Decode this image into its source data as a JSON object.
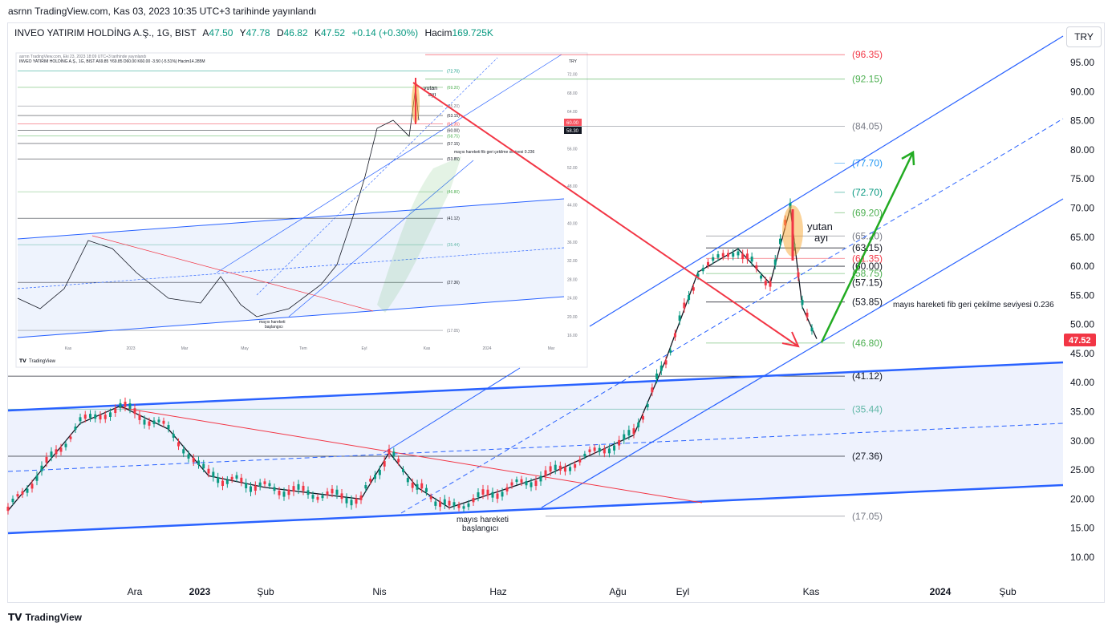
{
  "header": {
    "published_line": "asrnn TradingView.com, Kas 03, 2023 10:35 UTC+3 tarihinde yayınlandı",
    "symbol": "INVEO YATIRIM HOLDİNG A.Ş., 1G, BIST",
    "open_label": "A",
    "open": "47.50",
    "high_label": "Y",
    "high": "47.78",
    "low_label": "D",
    "low": "46.82",
    "close_label": "K",
    "close": "47.52",
    "change": "+0.14 (+0.30%)",
    "volume_label": "Hacim",
    "volume": "169.725K"
  },
  "currency_button": "TRY",
  "footer_logo": "TradingView",
  "chart_data": {
    "type": "candlestick",
    "price_axis": [
      "95.00",
      "90.00",
      "85.00",
      "80.00",
      "75.00",
      "70.00",
      "65.00",
      "60.00",
      "55.00",
      "50.00",
      "45.00",
      "40.00",
      "35.00",
      "30.00",
      "25.00",
      "20.00",
      "15.00",
      "10.00"
    ],
    "ylim": [
      8,
      101
    ],
    "time_axis": [
      "Ara",
      "2023",
      "Şub",
      "Nis",
      "Haz",
      "Ağu",
      "Eyl",
      "Kas",
      "2024",
      "Şub"
    ],
    "last_price": "47.52",
    "last_price_color": "#f23645",
    "fib_levels": [
      {
        "label": "(96.35)",
        "value": 96.35,
        "color": "#f23645"
      },
      {
        "label": "(92.15)",
        "value": 92.15,
        "color": "#4caf50"
      },
      {
        "label": "(84.05)",
        "value": 84.05,
        "color": "#787b86"
      },
      {
        "label": "(77.70)",
        "value": 77.7,
        "color": "#2196f3"
      },
      {
        "label": "(72.70)",
        "value": 72.7,
        "color": "#089981"
      },
      {
        "label": "(69.20)",
        "value": 69.2,
        "color": "#4caf50"
      },
      {
        "label": "(65.20)",
        "value": 65.2,
        "color": "#787b86"
      },
      {
        "label": "(63.15)",
        "value": 63.15,
        "color": "#131722"
      },
      {
        "label": "(61.35)",
        "value": 61.35,
        "color": "#f23645"
      },
      {
        "label": "(60.00)",
        "value": 60.0,
        "color": "#131722"
      },
      {
        "label": "(58.75)",
        "value": 58.75,
        "color": "#4caf50"
      },
      {
        "label": "(57.15)",
        "value": 57.15,
        "color": "#131722"
      },
      {
        "label": "(53.85)",
        "value": 53.85,
        "color": "#131722"
      },
      {
        "label": "(46.80)",
        "value": 46.8,
        "color": "#4caf50"
      },
      {
        "label": "(41.12)",
        "value": 41.12,
        "color": "#131722"
      },
      {
        "label": "(35.44)",
        "value": 35.44,
        "color": "#5fb7a6"
      },
      {
        "label": "(27.36)",
        "value": 27.36,
        "color": "#131722"
      },
      {
        "label": "(17.05)",
        "value": 17.05,
        "color": "#787b86"
      }
    ],
    "annotations": {
      "yutan": "yutan",
      "ayi": "ayı",
      "fib_note": "mayıs hareketi fib geri çekilme seviyesi 0.236",
      "start_line1": "mayıs hareketi",
      "start_line2": "başlangıcı"
    },
    "colors": {
      "up": "#089981",
      "down": "#f23645",
      "channel": "#2962ff",
      "arrow_red": "#f23645",
      "arrow_green": "#22ab22"
    },
    "price_path": [
      {
        "t": "Kas",
        "p": 18
      },
      {
        "t": "Ara",
        "p": 33
      },
      {
        "t": "Ara",
        "p": 36
      },
      {
        "t": "2023",
        "p": 32
      },
      {
        "t": "Şub",
        "p": 24
      },
      {
        "t": "Mar",
        "p": 22
      },
      {
        "t": "Nis",
        "p": 20
      },
      {
        "t": "Nis",
        "p": 28
      },
      {
        "t": "Mayıs",
        "p": 22
      },
      {
        "t": "Haz",
        "p": 18.5
      },
      {
        "t": "Tem",
        "p": 24
      },
      {
        "t": "Ağu",
        "p": 31
      },
      {
        "t": "Ağu",
        "p": 44
      },
      {
        "t": "Eyl",
        "p": 59
      },
      {
        "t": "Eyl",
        "p": 63
      },
      {
        "t": "Eki",
        "p": 57
      },
      {
        "t": "Eki",
        "p": 70
      },
      {
        "t": "Eki",
        "p": 53
      },
      {
        "t": "Kas",
        "p": 47.52
      }
    ]
  },
  "inset": {
    "published_line": "asrnn TradingView.com, Eki 23, 2023 18:09 UTC+3 tarihinde yayınlandı",
    "symbol_line": "INVEO YATIRIM HOLDİNG A.Ş., 1G, BIST  A69.85 Y69.85 D60.00 K60.00 -3.50 (-5.51%) Hacim14.285M",
    "currency": "TRY",
    "price_axis": [
      "72.00",
      "68.00",
      "64.00",
      "60.00",
      "56.00",
      "52.00",
      "48.00",
      "44.00",
      "40.00",
      "36.00",
      "32.00",
      "28.00",
      "24.00",
      "20.00",
      "16.00"
    ],
    "time_axis": [
      "Kas",
      "2023",
      "Mar",
      "May",
      "Tem",
      "Eyl",
      "Kas",
      "2024",
      "Mar"
    ],
    "levels": [
      "(72.70)",
      "(69.20)",
      "(65.20)",
      "(63.15)",
      "(61.35)",
      "(60.00)",
      "(58.75)",
      "(57.15)",
      "(53.85)",
      "(46.80)",
      "(41.12)",
      "(35.44)",
      "(27.36)",
      "(17.05)"
    ],
    "last_badge": "60.00",
    "prev_badge": "58.30",
    "yutan": "yutan",
    "ayi": "ayı",
    "fib_note": "mayıs hareketi fib geri çekilme seviyesi 0.236",
    "start_line1": "mayıs hareketi",
    "start_line2": "başlangıcı",
    "logo": "TradingView"
  }
}
